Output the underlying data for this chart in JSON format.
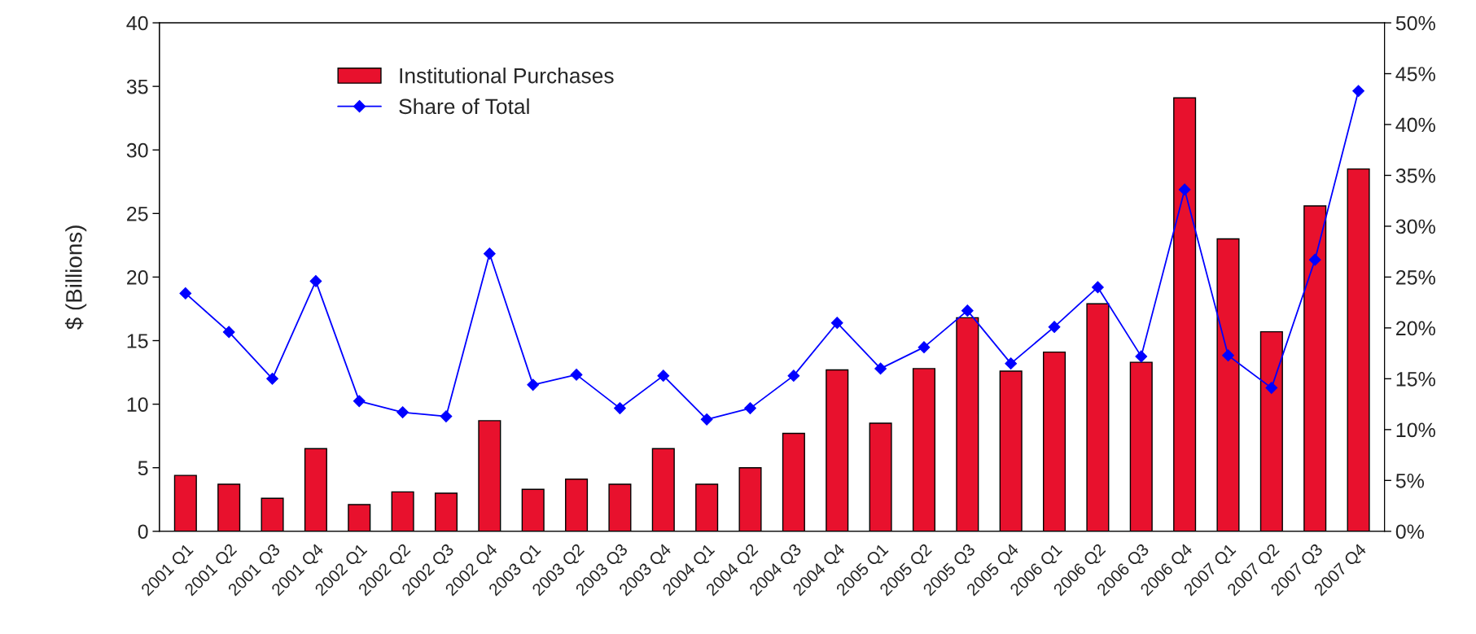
{
  "chart_data": {
    "type": "bar",
    "ylabel": "$ (Billions)",
    "categories": [
      "2001 Q1",
      "2001 Q2",
      "2001 Q3",
      "2001 Q4",
      "2002 Q1",
      "2002 Q2",
      "2002 Q3",
      "2002 Q4",
      "2003 Q1",
      "2003 Q2",
      "2003 Q3",
      "2003 Q4",
      "2004 Q1",
      "2004 Q2",
      "2004 Q3",
      "2004 Q4",
      "2005 Q1",
      "2005 Q2",
      "2005 Q3",
      "2005 Q4",
      "2006 Q1",
      "2006 Q2",
      "2006 Q3",
      "2006 Q4",
      "2007 Q1",
      "2007 Q2",
      "2007 Q3",
      "2007 Q4"
    ],
    "series": [
      {
        "name": "Institutional Purchases",
        "type": "bar",
        "color": "#e8112d",
        "values": [
          4.4,
          3.7,
          2.6,
          6.5,
          2.1,
          3.1,
          3.0,
          8.7,
          3.3,
          4.1,
          3.7,
          6.5,
          3.7,
          5.0,
          7.7,
          12.7,
          8.5,
          12.8,
          16.8,
          12.6,
          14.1,
          17.9,
          13.3,
          34.1,
          23.0,
          15.7,
          25.6,
          28.5
        ]
      },
      {
        "name": "Share of Total",
        "type": "line",
        "axis": "y2",
        "color": "#0000ff",
        "marker": "diamond",
        "values": [
          23.4,
          19.6,
          15.0,
          24.6,
          12.8,
          11.7,
          11.3,
          27.3,
          14.4,
          15.4,
          12.1,
          15.3,
          11.0,
          12.1,
          15.3,
          20.5,
          16.0,
          18.1,
          21.7,
          16.5,
          20.1,
          24.0,
          17.2,
          33.6,
          17.3,
          14.1,
          26.7,
          43.3
        ]
      }
    ],
    "ylim": [
      0,
      40
    ],
    "yticks": [
      0,
      5,
      10,
      15,
      20,
      25,
      30,
      35,
      40
    ],
    "y2lim": [
      0,
      50
    ],
    "y2ticks": [
      {
        "value": 0,
        "label": "0%"
      },
      {
        "value": 5,
        "label": "5%"
      },
      {
        "value": 10,
        "label": "10%"
      },
      {
        "value": 15,
        "label": "15%"
      },
      {
        "value": 20,
        "label": "20%"
      },
      {
        "value": 25,
        "label": "25%"
      },
      {
        "value": 30,
        "label": "30%"
      },
      {
        "value": 35,
        "label": "35%"
      },
      {
        "value": 40,
        "label": "40%"
      },
      {
        "value": 45,
        "label": "45%"
      },
      {
        "value": 50,
        "label": "50%"
      }
    ],
    "grid": false,
    "legend": "top left"
  }
}
